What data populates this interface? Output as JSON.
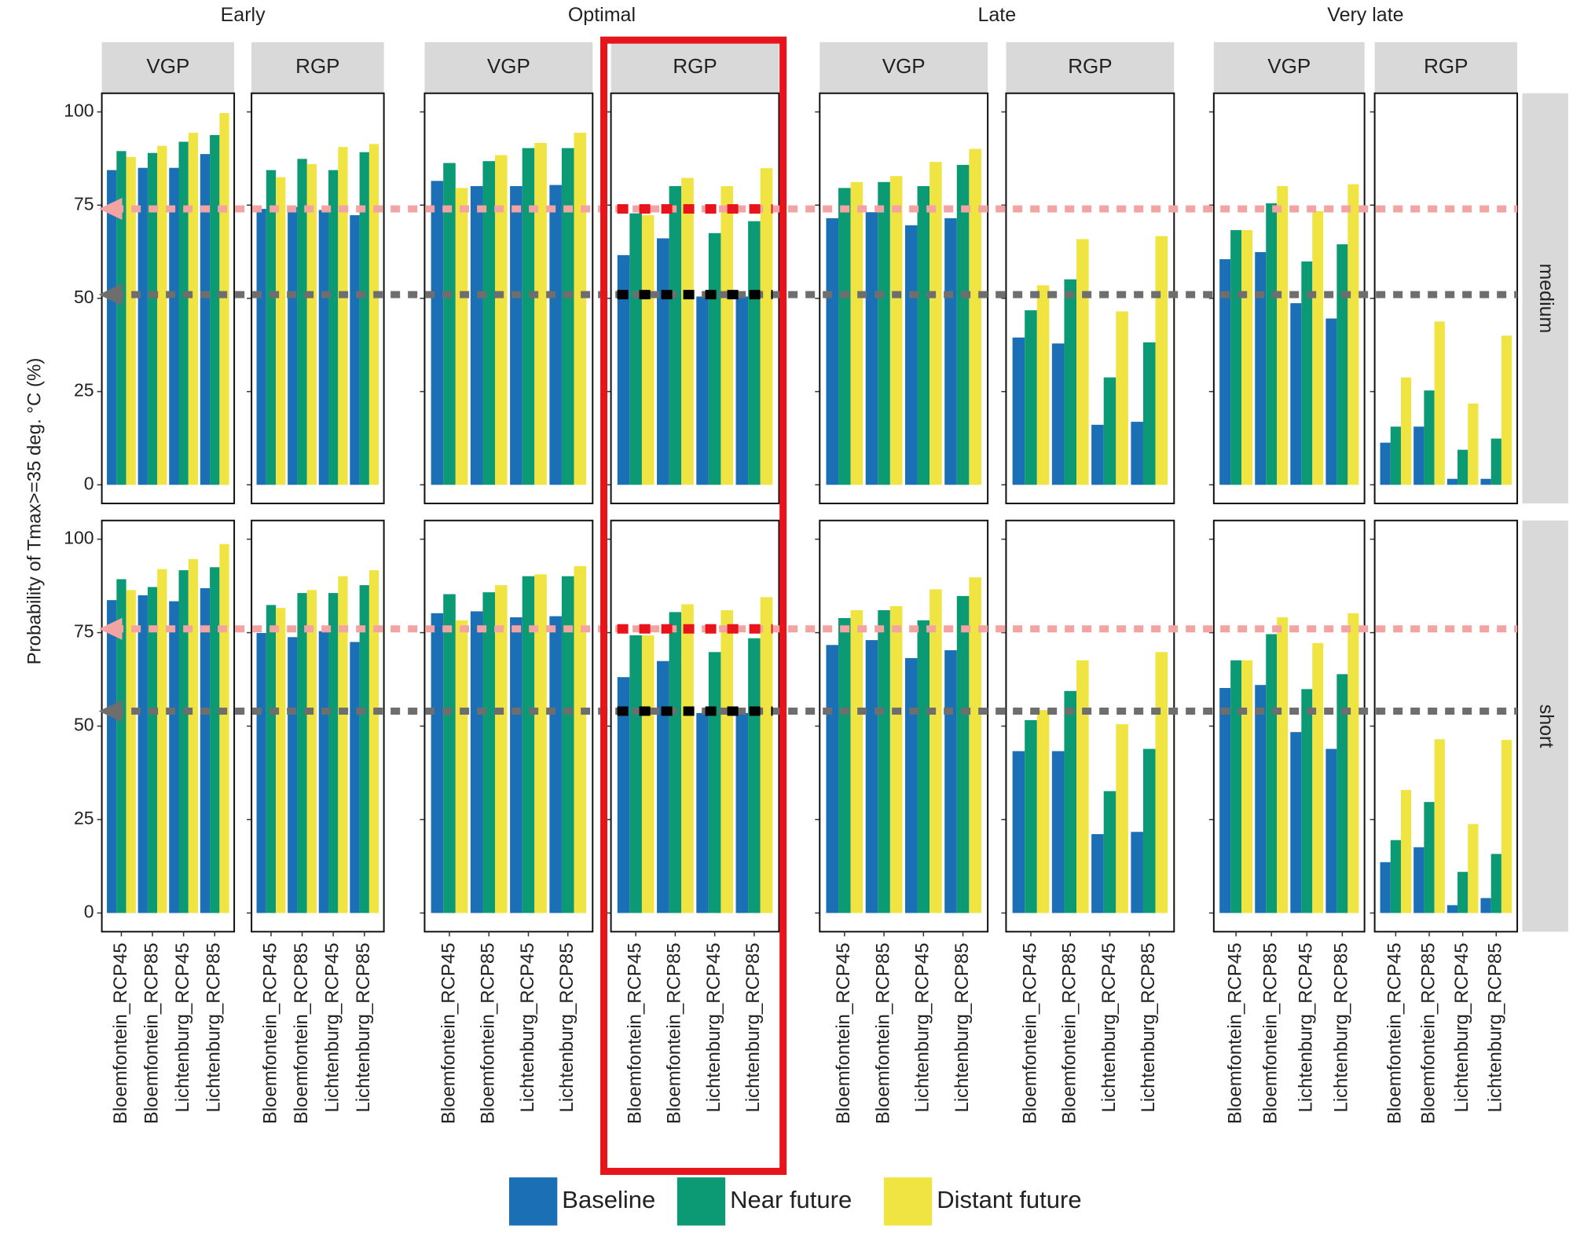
{
  "chart_data": {
    "type": "bar",
    "y_label": "Probability of Tmax>=35 deg. °C (%)",
    "ylim": [
      -5,
      105
    ],
    "yticks": [
      0,
      25,
      50,
      75,
      100
    ],
    "groups": [
      "Early",
      "Optimal",
      "Late",
      "Very late"
    ],
    "strips": [
      "VGP",
      "RGP",
      "VGP",
      "RGP",
      "VGP",
      "RGP",
      "VGP",
      "RGP"
    ],
    "rows": [
      "medium",
      "short"
    ],
    "categories": [
      "Bloemfontein_RCP45",
      "Bloemfontein_RCP85",
      "Lichtenburg_RCP45",
      "Lichtenburg_RCP85"
    ],
    "series": [
      {
        "name": "Baseline",
        "color": "#1a6fb5"
      },
      {
        "name": "Near future",
        "color": "#0b9a74"
      },
      {
        "name": "Distant future",
        "color": "#f0e442"
      }
    ],
    "values": [
      [
        [
          [
            84.4,
            85,
            85,
            88.7
          ],
          [
            89.5,
            89,
            92,
            93.8
          ],
          [
            87.9,
            90.9,
            94.4,
            99.7
          ]
        ],
        [
          [
            74,
            74.5,
            73.7,
            72.3
          ],
          [
            84.4,
            87.4,
            84.4,
            89.2
          ],
          [
            82.5,
            86,
            90.6,
            91.4
          ]
        ],
        [
          [
            81.5,
            80.1,
            80.1,
            80.4
          ],
          [
            86.3,
            86.8,
            90.3,
            90.3
          ],
          [
            79.6,
            88.4,
            91.7,
            94.4
          ]
        ],
        [
          [
            61.6,
            66.1,
            50.5,
            50.5
          ],
          [
            72.8,
            80.1,
            67.5,
            70.7
          ],
          [
            72.3,
            82.3,
            80.1,
            84.9
          ]
        ],
        [
          [
            71.5,
            73.1,
            69.6,
            71.5
          ],
          [
            79.6,
            81.2,
            80.1,
            85.8
          ],
          [
            81.2,
            82.8,
            86.6,
            90.1
          ]
        ],
        [
          [
            39.5,
            37.9,
            16.1,
            16.9
          ],
          [
            46.8,
            55.1,
            28.8,
            38.2
          ],
          [
            53.5,
            65.9,
            46.5,
            66.7
          ]
        ],
        [
          [
            60.5,
            62.4,
            48.7,
            44.6
          ],
          [
            68.3,
            75.5,
            59.9,
            64.5
          ],
          [
            68.3,
            80.1,
            73.4,
            80.6
          ]
        ],
        [
          [
            11.3,
            15.6,
            1.6,
            1.6
          ],
          [
            15.6,
            25.3,
            9.4,
            12.4
          ],
          [
            28.8,
            43.8,
            21.8,
            40
          ]
        ]
      ],
      [
        [
          [
            83.7,
            85,
            83.4,
            86.9
          ],
          [
            89.3,
            87.2,
            91.7,
            92.5
          ],
          [
            86.4,
            92,
            94.7,
            98.7
          ]
        ],
        [
          [
            74.9,
            73.8,
            75.4,
            72.5
          ],
          [
            82.4,
            85.6,
            85.6,
            87.7
          ],
          [
            81.6,
            86.4,
            90.1,
            91.7
          ]
        ],
        [
          [
            80.2,
            80.7,
            79.1,
            79.4
          ],
          [
            85.3,
            85.8,
            90.1,
            90.1
          ],
          [
            78.3,
            87.7,
            90.6,
            92.8
          ]
        ],
        [
          [
            63.1,
            67.4,
            53.5,
            53.5
          ],
          [
            74.3,
            80.5,
            69.8,
            73.5
          ],
          [
            74.3,
            82.6,
            81,
            84.5
          ]
        ],
        [
          [
            71.7,
            73,
            68.2,
            70.3
          ],
          [
            78.9,
            81,
            78.3,
            84.8
          ],
          [
            81,
            82.1,
            86.6,
            89.8
          ]
        ],
        [
          [
            43.3,
            43.3,
            21.1,
            21.7
          ],
          [
            51.6,
            59.4,
            32.6,
            43.9
          ],
          [
            54.3,
            67.6,
            50.5,
            69.8
          ]
        ],
        [
          [
            60.2,
            61,
            48.4,
            43.9
          ],
          [
            67.6,
            74.6,
            59.9,
            63.9
          ],
          [
            67.6,
            79.1,
            72.2,
            80.2
          ]
        ],
        [
          [
            13.6,
            17.6,
            2.1,
            4
          ],
          [
            19.5,
            29.7,
            11,
            15.8
          ],
          [
            32.9,
            46.5,
            23.8,
            46.3
          ]
        ]
      ]
    ],
    "reference_lines": [
      [
        {
          "value": 74,
          "color": "#f4a3a3"
        },
        {
          "value": 51,
          "color": "#6e6e6e"
        }
      ],
      [
        {
          "value": 76,
          "color": "#f4a3a3"
        },
        {
          "value": 54,
          "color": "#6e6e6e"
        }
      ]
    ]
  }
}
